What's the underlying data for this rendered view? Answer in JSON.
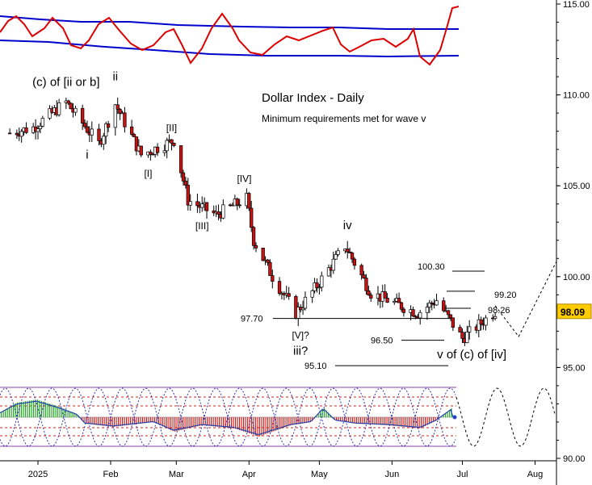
{
  "chart_data": {
    "type": "candlestick",
    "title": "Dollar Index - Daily",
    "subtitle": "Minimum requirements met for wave v",
    "y_axis": {
      "range": [
        90,
        115
      ],
      "ticks": [
        "115.00",
        "110.00",
        "105.00",
        "100.00",
        "95.00",
        "90.00"
      ],
      "current_price_label": "98.09",
      "current_price": 98.09
    },
    "x_axis": {
      "ticks": [
        {
          "label": "2025",
          "date": "2025-01-01"
        },
        {
          "label": "Feb",
          "date": "2025-02-01"
        },
        {
          "label": "Mar",
          "date": "2025-03-01"
        },
        {
          "label": "Apr",
          "date": "2025-04-01"
        },
        {
          "label": "May",
          "date": "2025-05-01"
        },
        {
          "label": "Jun",
          "date": "2025-06-01"
        },
        {
          "label": "Jul",
          "date": "2025-07-01"
        },
        {
          "label": "Aug",
          "date": "2025-08-01"
        }
      ]
    },
    "price_path": [
      {
        "date": "2024-12-20",
        "close": 107.9
      },
      {
        "date": "2024-12-30",
        "close": 108.2
      },
      {
        "date": "2025-01-13",
        "close": 109.6
      },
      {
        "date": "2025-01-27",
        "close": 107.3
      },
      {
        "date": "2025-02-03",
        "close": 109.5
      },
      {
        "date": "2025-02-14",
        "close": 106.7
      },
      {
        "date": "2025-02-28",
        "close": 107.5
      },
      {
        "date": "2025-03-06",
        "close": 104.2
      },
      {
        "date": "2025-03-18",
        "close": 103.4
      },
      {
        "date": "2025-03-31",
        "close": 104.3
      },
      {
        "date": "2025-04-03",
        "close": 102.0
      },
      {
        "date": "2025-04-11",
        "close": 100.0
      },
      {
        "date": "2025-04-21",
        "close": 98.0
      },
      {
        "date": "2025-04-30",
        "close": 99.5
      },
      {
        "date": "2025-05-12",
        "close": 101.7
      },
      {
        "date": "2025-05-23",
        "close": 99.1
      },
      {
        "date": "2025-06-12",
        "close": 98.0
      },
      {
        "date": "2025-06-20",
        "close": 98.7
      },
      {
        "date": "2025-07-01",
        "close": 96.6
      },
      {
        "date": "2025-07-15",
        "close": 98.09
      }
    ],
    "wave_labels": [
      {
        "text": "(c) of [ii or b]",
        "date": "2025-01-13",
        "price": 110.5
      },
      {
        "text": "ii",
        "date": "2025-02-03",
        "price": 110.8
      },
      {
        "text": "i",
        "date": "2025-01-22",
        "price": 106.5
      },
      {
        "text": "[I]",
        "date": "2025-02-17",
        "price": 105.5
      },
      {
        "text": "[II]",
        "date": "2025-02-27",
        "price": 108.0
      },
      {
        "text": "[III]",
        "date": "2025-03-12",
        "price": 102.6
      },
      {
        "text": "[IV]",
        "date": "2025-03-30",
        "price": 105.2
      },
      {
        "text": "iv",
        "date": "2025-05-13",
        "price": 102.6
      },
      {
        "text": "[V]?",
        "date": "2025-04-23",
        "price": 96.6
      },
      {
        "text": "iii?",
        "date": "2025-04-23",
        "price": 95.7
      },
      {
        "text": "v of (c) of [iv]",
        "date": "2025-07-05",
        "price": 95.5
      }
    ],
    "levels": [
      {
        "label": "100.30",
        "value": 100.3
      },
      {
        "label": "99.20",
        "value": 99.2
      },
      {
        "label": "98.26",
        "value": 98.26
      },
      {
        "label": "97.70",
        "value": 97.7
      },
      {
        "label": "96.50",
        "value": 96.5
      },
      {
        "label": "95.10",
        "value": 95.1
      }
    ],
    "projection_path": [
      {
        "date": "2025-07-15",
        "price": 98.4
      },
      {
        "date": "2025-07-25",
        "price": 96.7
      },
      {
        "date": "2025-08-10",
        "price": 100.8
      }
    ],
    "top_indicator": {
      "lines": [
        "blue bands",
        "red oscillator"
      ],
      "colors": {
        "bands": "#0000cc",
        "oscillator": "#dd0000"
      }
    },
    "bottom_indicator": {
      "type": "histogram with cycle overlay",
      "colors": {
        "positive": "#22aa22",
        "negative": "#cc2222",
        "cycle": "#3333aa",
        "bands": "#8844aa"
      }
    },
    "grid": false
  }
}
